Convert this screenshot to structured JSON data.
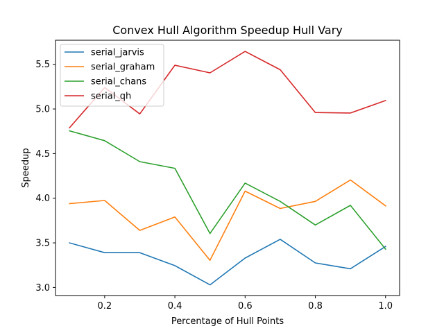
{
  "chart_data": {
    "type": "line",
    "title": "Convex Hull Algorithm Speedup Hull Vary",
    "xlabel": "Percentage of Hull Points",
    "ylabel": "Speedup",
    "x": [
      0.1,
      0.2,
      0.3,
      0.4,
      0.5,
      0.6,
      0.7,
      0.8,
      0.9,
      1.0
    ],
    "xlim": [
      0.06,
      1.04
    ],
    "ylim": [
      2.91,
      5.77
    ],
    "xticks": [
      0.2,
      0.4,
      0.6,
      0.8,
      1.0
    ],
    "xtick_labels": [
      "0.2",
      "0.4",
      "0.6",
      "0.8",
      "1.0"
    ],
    "yticks": [
      3.0,
      3.5,
      4.0,
      4.5,
      5.0,
      5.5
    ],
    "ytick_labels": [
      "3.0",
      "3.5",
      "4.0",
      "4.5",
      "5.0",
      "5.5"
    ],
    "grid": false,
    "legend_position": "top-left",
    "series": [
      {
        "name": "serial_jarvis",
        "color": "#1f77b4",
        "values": [
          3.5,
          3.39,
          3.39,
          3.245,
          3.03,
          3.33,
          3.54,
          3.275,
          3.21,
          3.46
        ]
      },
      {
        "name": "serial_graham",
        "color": "#ff7f0e",
        "values": [
          3.94,
          3.975,
          3.64,
          3.79,
          3.305,
          4.08,
          3.885,
          3.965,
          4.205,
          3.915
        ]
      },
      {
        "name": "serial_chans",
        "color": "#2ca02c",
        "values": [
          4.755,
          4.645,
          4.41,
          4.335,
          3.605,
          4.17,
          3.965,
          3.7,
          3.92,
          3.43
        ]
      },
      {
        "name": "serial_qh",
        "color": "#d62728",
        "values": [
          4.79,
          5.24,
          4.945,
          5.49,
          5.405,
          5.645,
          5.44,
          4.96,
          4.955,
          5.095
        ]
      }
    ]
  }
}
